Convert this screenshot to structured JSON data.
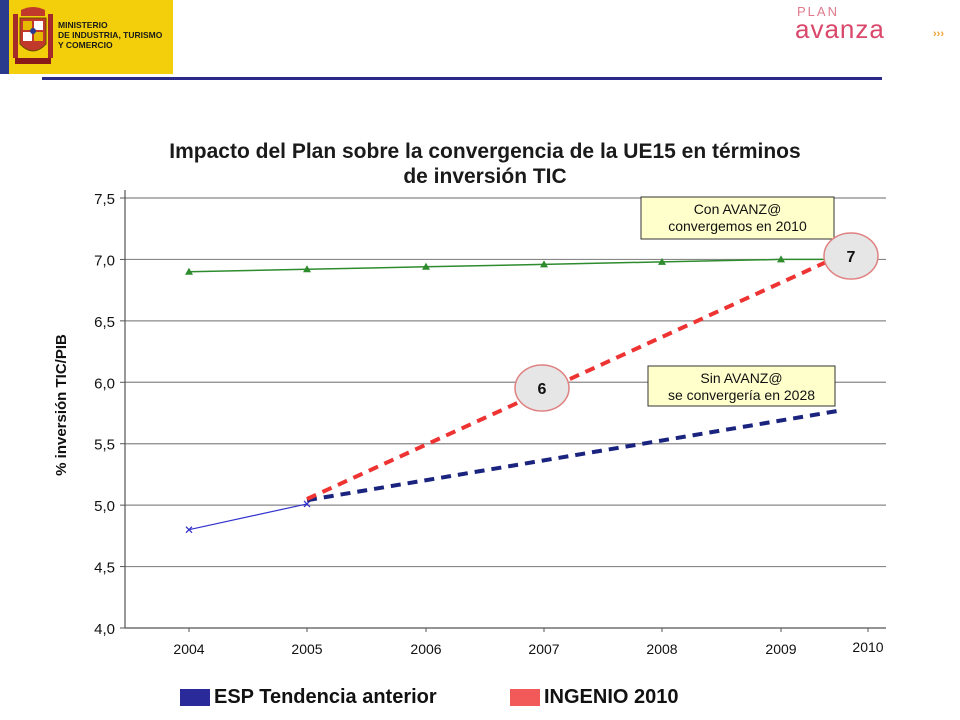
{
  "header": {
    "ministry_lines": [
      "MINISTERIO",
      "DE INDUSTRIA, TURISMO",
      "Y COMERCIO"
    ],
    "plan_word": "PLAN",
    "avanza_word": "avanza",
    "chevrons": "›››"
  },
  "colors": {
    "ministry_yellow": "#f2cf0a",
    "rule_blue": "#2a2a8a",
    "green_series": "#2e8b2e",
    "esp_blue": "#3333cc",
    "esp_dark_blue": "#1a237e",
    "ingenio_red": "#ee3333",
    "callout_bg": "#ffffcc",
    "circle_fill": "#e6e6e6",
    "circle_stroke": "#e08080"
  },
  "chart_data": {
    "type": "line",
    "title_lines": [
      "Impacto del Plan sobre la convergencia de la UE15 en términos",
      "de inversión TIC"
    ],
    "ylabel": "% inversión TIC/PIB",
    "ylim": [
      4.0,
      7.5
    ],
    "yticks": [
      "4,0",
      "4,5",
      "5,0",
      "5,5",
      "6,0",
      "6,5",
      "7,0",
      "7,5"
    ],
    "categories": [
      "2004",
      "2005",
      "2006",
      "2007",
      "2008",
      "2009",
      "2010"
    ],
    "grid": true,
    "series": [
      {
        "key": "ue15",
        "style": "solid-triangle",
        "x": [
          2004,
          2005,
          2006,
          2007,
          2008,
          2009,
          2010
        ],
        "values": [
          6.9,
          6.92,
          6.94,
          6.96,
          6.98,
          7.0,
          7.0
        ]
      },
      {
        "key": "esp_historic",
        "style": "solid-x",
        "x": [
          2004,
          2005
        ],
        "values": [
          4.8,
          5.01
        ]
      },
      {
        "key": "esp_trend",
        "name": "ESP Tendencia anterior",
        "style": "dashed",
        "x": [
          2005,
          2010
        ],
        "values": [
          5.04,
          5.77
        ]
      },
      {
        "key": "ingenio",
        "name": "INGENIO 2010",
        "style": "dashed",
        "x": [
          2005,
          2010
        ],
        "values": [
          5.05,
          7.03
        ]
      }
    ],
    "annotations": [
      {
        "key": "con",
        "lines": [
          "Con AVANZ@",
          "convergemos en 2010"
        ]
      },
      {
        "key": "sin",
        "lines": [
          "Sin AVANZ@",
          "se convergería en 2028"
        ]
      }
    ],
    "markers": [
      {
        "label": "6",
        "x": 2007,
        "y": 5.96
      },
      {
        "label": "7",
        "x": 2010,
        "y": 7.03
      }
    ],
    "legend_position": "bottom"
  }
}
